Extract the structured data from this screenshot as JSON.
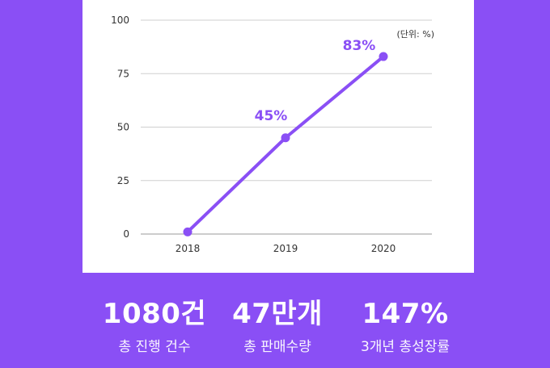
{
  "chart_data": {
    "type": "line",
    "x": [
      "2018",
      "2019",
      "2020"
    ],
    "series": [
      {
        "values": [
          1,
          45,
          83
        ]
      }
    ],
    "data_labels": [
      "",
      "45%",
      "83%"
    ],
    "ylim": [
      0,
      100
    ],
    "yticks": [
      0,
      25,
      50,
      75,
      100
    ],
    "unit_note": "(단위: %)",
    "grid": true,
    "line_color": "#8a4ff5"
  },
  "stats": [
    {
      "value": "1080건",
      "label": "총 진행 건수"
    },
    {
      "value": "47만개",
      "label": "총 판매수량"
    },
    {
      "value": "147%",
      "label": "3개년 총성장률"
    }
  ],
  "colors": {
    "background": "#8a4ff5",
    "card": "#ffffff",
    "gridline": "#cfcfcf",
    "data_label": "#8a4ff5"
  }
}
